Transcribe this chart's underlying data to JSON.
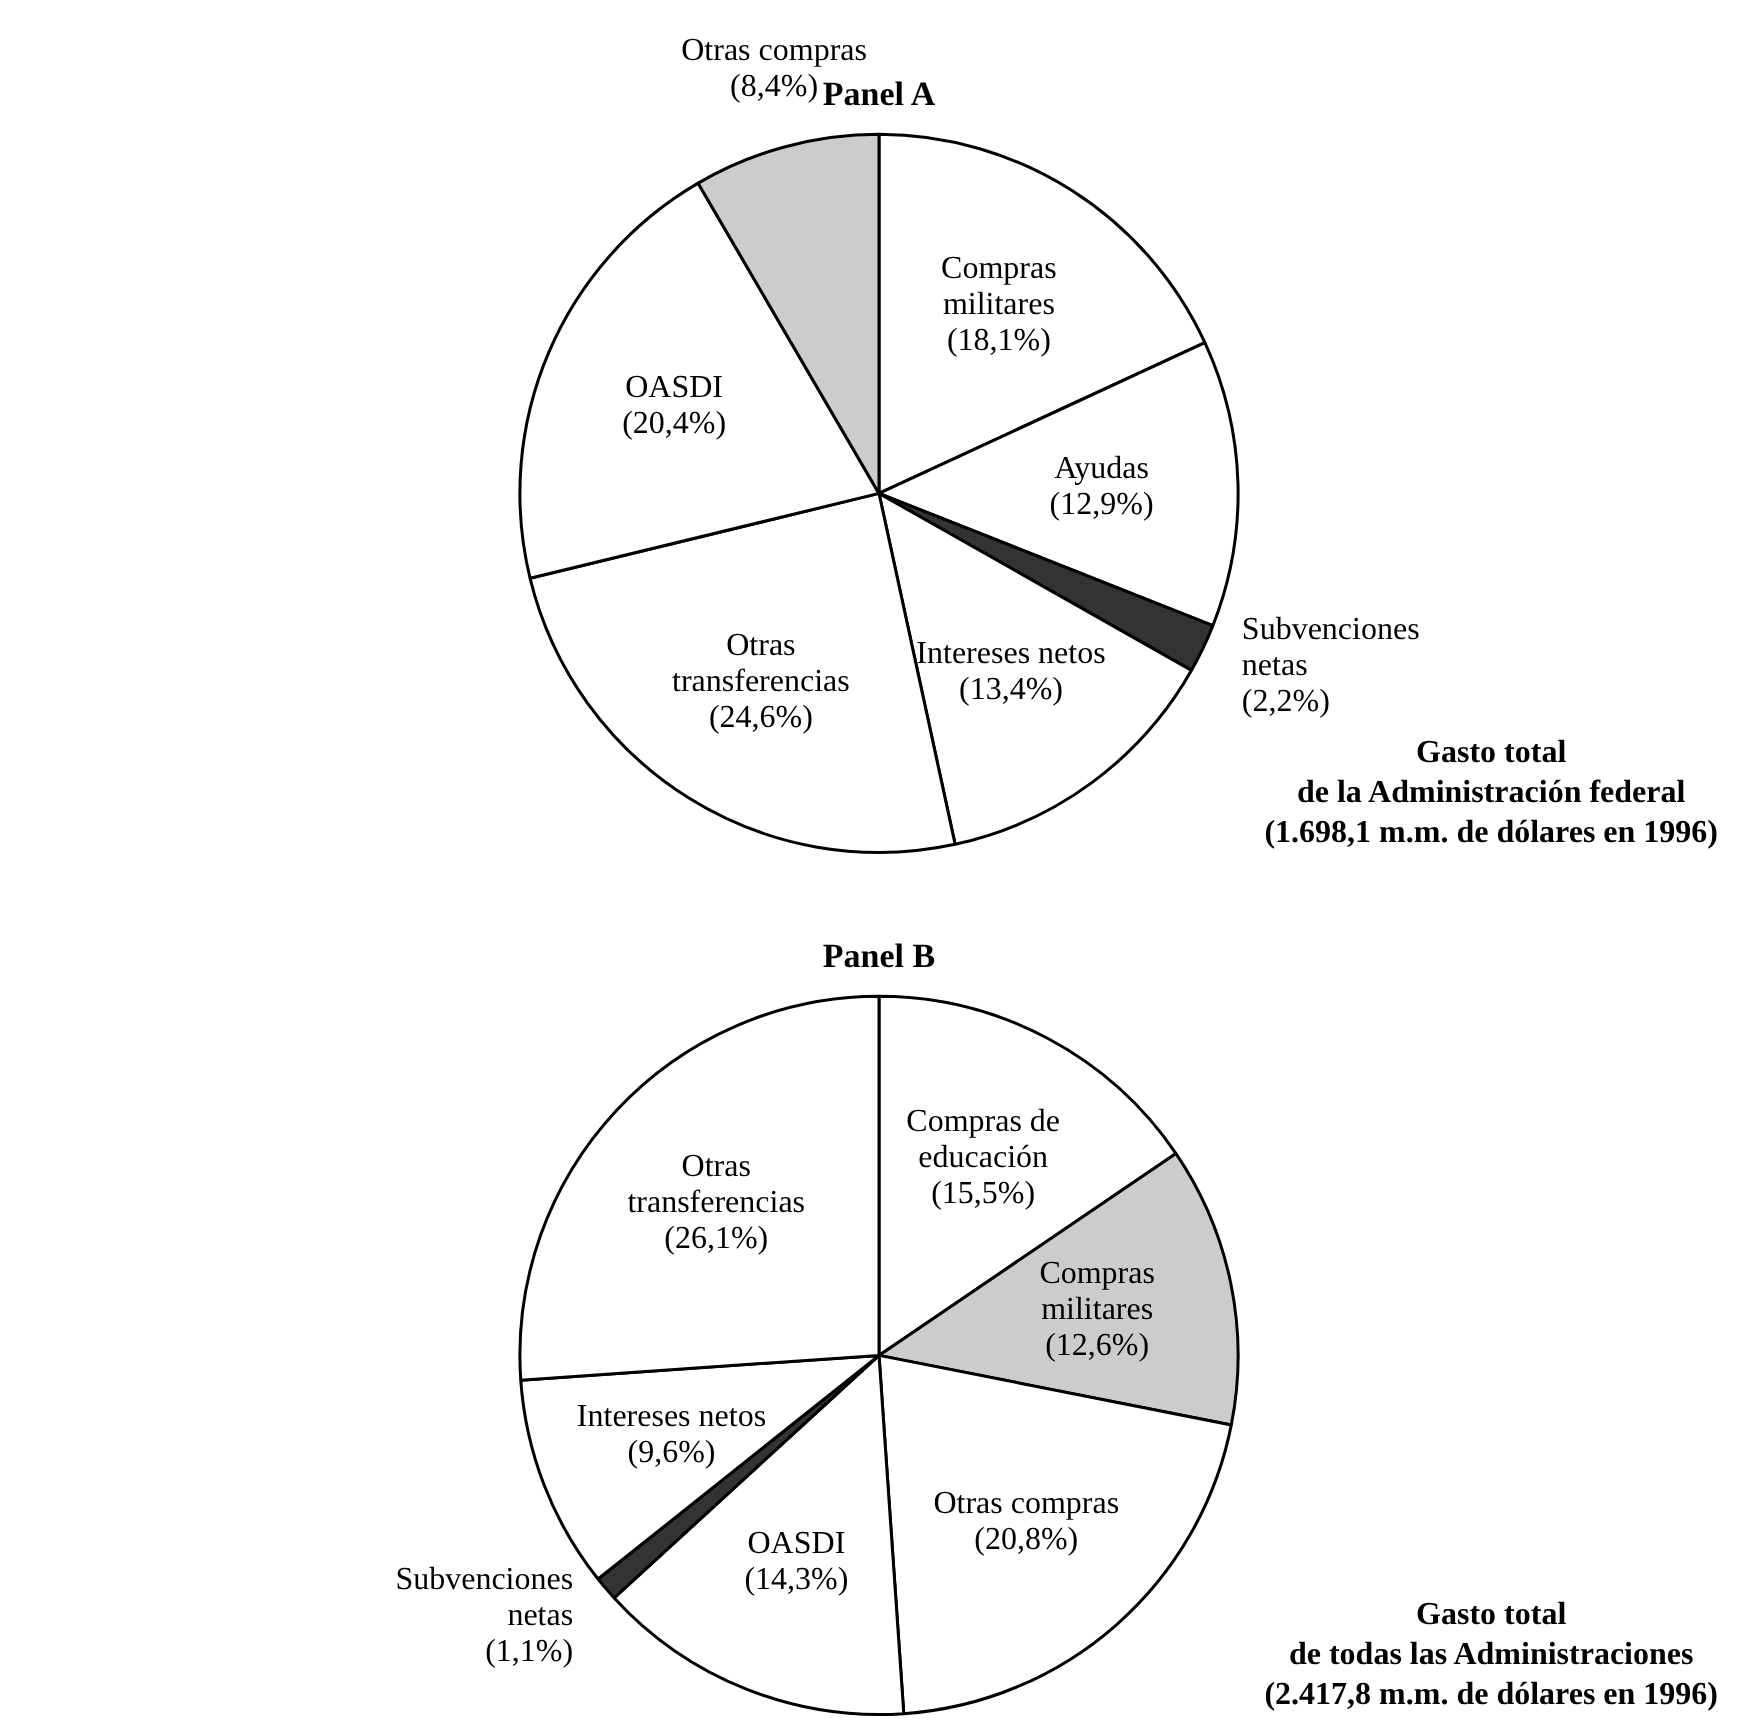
{
  "chart_data": [
    {
      "type": "pie",
      "title": "Panel A",
      "categories": [
        "Compras militares",
        "Ayudas",
        "Subvenciones netas",
        "Intereses netos",
        "Otras transferencias",
        "OASDI",
        "Otras compras"
      ],
      "values": [
        18.1,
        12.9,
        2.2,
        13.4,
        24.6,
        20.4,
        8.4
      ],
      "value_labels": [
        "(18,1%)",
        "(12,9%)",
        "(2,2%)",
        "(13,4%)",
        "(24,6%)",
        "(20,4%)",
        "(8,4%)"
      ],
      "colors": [
        "#ffffff",
        "#ffffff",
        "#333333",
        "#ffffff",
        "#ffffff",
        "#ffffff",
        "#cccccc"
      ],
      "annotations": [
        "Gasto total\nde la Administración federal\n(1.698,1 m.m. de dólares en 1996)"
      ]
    },
    {
      "type": "pie",
      "title": "Panel B",
      "categories": [
        "Compras de educación",
        "Compras militares",
        "Otras compras",
        "OASDI",
        "Subvenciones netas",
        "Intereses netos",
        "Otras transferencias"
      ],
      "values": [
        15.5,
        12.6,
        20.8,
        14.3,
        1.1,
        9.6,
        26.1
      ],
      "value_labels": [
        "(15,5%)",
        "(12,6%)",
        "(20,8%)",
        "(14,3%)",
        "(1,1%)",
        "(9,6%)",
        "(26,1%)"
      ],
      "colors": [
        "#ffffff",
        "#cccccc",
        "#ffffff",
        "#ffffff",
        "#333333",
        "#ffffff",
        "#ffffff"
      ],
      "annotations": [
        "Gasto total\nde todas las Administraciones\n(2.417,8 m.m. de dólares en 1996)"
      ]
    }
  ]
}
